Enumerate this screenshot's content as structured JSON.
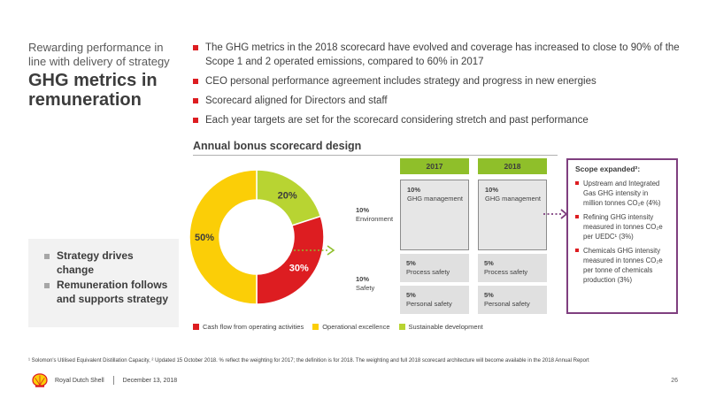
{
  "header": {
    "subtitle": "Rewarding performance in line with delivery of strategy",
    "title": "GHG metrics in remuneration"
  },
  "bullets": [
    "The GHG metrics in the 2018 scorecard have evolved and coverage has increased to close to 90% of the Scope 1 and 2 operated emissions, compared to 60% in 2017",
    "CEO personal performance agreement includes strategy and progress in new energies",
    "Scorecard aligned for Directors and staff",
    "Each year targets are set for the scorecard considering stretch and past performance"
  ],
  "section_title": "Annual bonus scorecard design",
  "takeaways": [
    "Strategy drives change",
    "Remuneration follows and supports strategy"
  ],
  "chart_data": {
    "type": "pie",
    "categories": [
      "Cash flow from operating activities",
      "Operational excellence",
      "Sustainable development"
    ],
    "values": [
      30,
      50,
      20
    ],
    "labels": [
      "30%",
      "50%",
      "20%"
    ],
    "colors": [
      "#dd1d21",
      "#fbce07",
      "#b8d432"
    ],
    "legend": "bottom"
  },
  "scorecard": {
    "weights": [
      {
        "pct": "10%",
        "label": "Environment"
      },
      {
        "pct": "10%",
        "label": "Safety"
      }
    ],
    "columns": [
      {
        "year": "2017",
        "rows": [
          {
            "pct": "10%",
            "label": "GHG management"
          },
          {
            "pct": "5%",
            "label": "Process safety"
          },
          {
            "pct": "5%",
            "label": "Personal safety"
          }
        ]
      },
      {
        "year": "2018",
        "rows": [
          {
            "pct": "10%",
            "label": "GHG management"
          },
          {
            "pct": "5%",
            "label": "Process safety"
          },
          {
            "pct": "5%",
            "label": "Personal safety"
          }
        ]
      }
    ]
  },
  "scope": {
    "title": "Scope expanded²:",
    "items": [
      "Upstream and Integrated Gas GHG intensity in million tonnes CO₂e (4%)",
      "Refining GHG intensity measured in tonnes CO₂e per UEDC¹ (3%)",
      "Chemicals GHG intensity measured in tonnes CO₂e per tonne of chemicals production (3%)"
    ]
  },
  "footnote": "¹ Solomon's Utilised Equivalent Distillation Capacity, ² Updated 15 October 2018. % reflect the weighting for 2017; the definition is for 2018. The weighting and full 2018 scorecard architecture will become available in the 2018 Annual Report",
  "footer": {
    "company": "Royal Dutch Shell",
    "date": "December 13, 2018",
    "page": "26"
  },
  "icons": {
    "logo": "shell-logo-icon",
    "arrow": "dotted-arrow-icon"
  }
}
